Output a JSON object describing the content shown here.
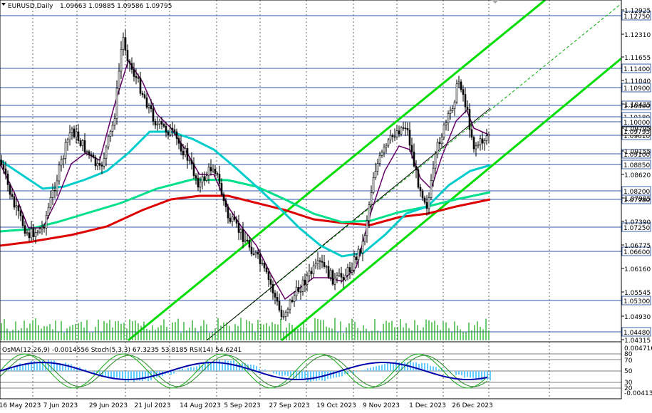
{
  "header": {
    "symbol": "EURUSD,Daily",
    "ohlc": "1.09663 1.09885 1.09586 1.09795"
  },
  "indicator_header": "OsMA(12,26,9) -0.0014556   Stoch(5,3,3) 67.3235 53.8185   RSI(14) 54.6241",
  "price_scale": [
    "1.12925",
    "1.12310",
    "1.11655",
    "1.11040",
    "1.10425",
    "1.09795",
    "1.09155",
    "1.08620",
    "1.07985",
    "1.07390",
    "1.06775",
    "1.06160",
    "1.05545",
    "1.04930",
    "1.04315"
  ],
  "level_labels": [
    "1.12750",
    "1.11400",
    "1.10900",
    "1.10400",
    "1.10180",
    "1.10000",
    "1.09610",
    "1.09100",
    "1.08850",
    "1.08200",
    "1.07980",
    "1.07250",
    "1.06600",
    "1.05300",
    "1.04480"
  ],
  "current_price": "1.09795",
  "osc_scale": [
    "0.0047168",
    "80",
    "70",
    "50",
    "30",
    "20",
    "-0.0041392"
  ],
  "date_labels": [
    "16 May 2023",
    "7 Jun 2023",
    "29 Jun 2023",
    "21 Jul 2023",
    "14 Aug 2023",
    "5 Sep 2023",
    "27 Sep 2023",
    "19 Oct 2023",
    "9 Nov 2023",
    "1 Dec 2023",
    "26 Dec 2023"
  ],
  "colors": {
    "bullish_line": "#00dd00",
    "ema_fast": "#00cccc",
    "ema_mid": "#00e08a",
    "ema_slow": "#dd0000",
    "stoch_main": "#0000aa",
    "stoch_signal": "#11aa11",
    "rsi": "#660066",
    "osma_hist": "#66ccff",
    "candles": "#000000"
  },
  "chart_data": {
    "type": "line",
    "title": "EURUSD,Daily",
    "x": [
      "16 May 2023",
      "7 Jun 2023",
      "29 Jun 2023",
      "21 Jul 2023",
      "14 Aug 2023",
      "5 Sep 2023",
      "27 Sep 2023",
      "19 Oct 2023",
      "9 Nov 2023",
      "1 Dec 2023",
      "26 Dec 2023"
    ],
    "series": [
      {
        "values": [
          1.086,
          1.07,
          1.092,
          1.105,
          1.092,
          1.087,
          1.055,
          1.05,
          1.072,
          1.082,
          1.104
        ]
      },
      {
        "values": [
          1.078,
          1.074,
          1.08,
          1.099,
          1.096,
          1.083,
          1.072,
          1.067,
          1.068,
          1.079,
          1.087
        ]
      },
      {
        "values": [
          1.07,
          1.072,
          1.076,
          1.083,
          1.086,
          1.085,
          1.079,
          1.073,
          1.072,
          1.077,
          1.081
        ]
      },
      {
        "values": [
          1.066,
          1.068,
          1.07,
          1.077,
          1.08,
          1.08,
          1.077,
          1.074,
          1.073,
          1.076,
          1.079
        ]
      }
    ],
    "ylim": [
      1.04315,
      1.12925
    ]
  }
}
